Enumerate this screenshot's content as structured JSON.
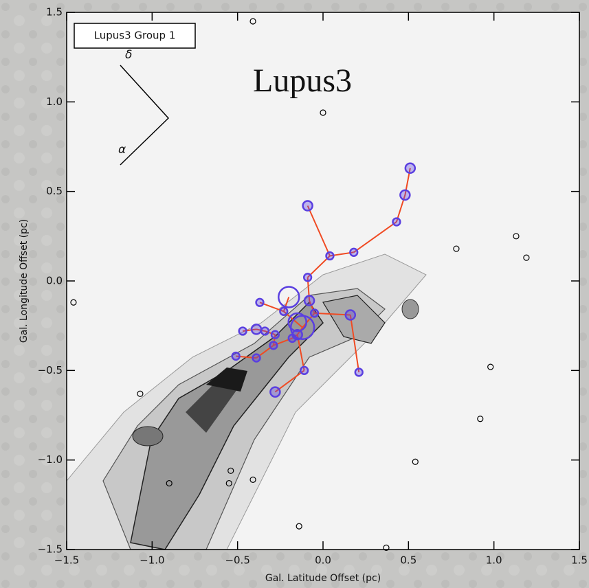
{
  "chart_data": {
    "type": "scatter",
    "title": "Lupus3",
    "legend_label": "Lupus3 Group 1",
    "compass": {
      "north": "δ",
      "east": "α"
    },
    "x_label": "Gal. Latitude Offset (pc)",
    "y_label": "Gal. Longitude Offset (pc)",
    "xlim": [
      -1.5,
      1.5
    ],
    "ylim": [
      -1.5,
      1.5
    ],
    "xticks": [
      {
        "value": -1.5,
        "label": "−1.5"
      },
      {
        "value": -1,
        "label": "−1.0"
      },
      {
        "value": -0.5,
        "label": "−0.5"
      },
      {
        "value": 0,
        "label": "0.0"
      },
      0.5,
      {
        "value": 1,
        "label": "1.0"
      },
      1.5
    ],
    "yticks": [
      {
        "value": -1.5,
        "label": "−1.5"
      },
      {
        "value": -1,
        "label": "−1.0"
      },
      {
        "value": -0.5,
        "label": "−0.5"
      },
      {
        "value": 0,
        "label": "0.0"
      },
      0.5,
      {
        "value": 1,
        "label": "1.0"
      },
      1.5
    ],
    "point_color": "#5a3fe0",
    "edge_color": "#f04a22",
    "points": {
      "x": [
        0.51,
        0.48,
        0.43,
        -0.09,
        0.18,
        0.04,
        -0.09,
        -0.2,
        -0.37,
        -0.23,
        -0.08,
        -0.05,
        0.16,
        -0.15,
        -0.12,
        0.21,
        -0.47,
        -0.39,
        -0.34,
        -0.28,
        -0.29,
        -0.18,
        -0.15,
        -0.11,
        -0.51,
        -0.39,
        -0.28
      ],
      "y": [
        0.63,
        0.48,
        0.33,
        0.42,
        0.16,
        0.14,
        0.02,
        -0.09,
        -0.12,
        -0.17,
        -0.11,
        -0.18,
        -0.19,
        -0.23,
        -0.26,
        -0.51,
        -0.28,
        -0.27,
        -0.28,
        -0.3,
        -0.36,
        -0.32,
        -0.3,
        -0.5,
        -0.42,
        -0.43,
        -0.62
      ],
      "sizes": [
        1,
        1,
        0.6,
        1,
        0.6,
        0.6,
        0.6,
        3,
        0.6,
        0.6,
        1,
        0.6,
        1,
        2.5,
        3.5,
        0.6,
        0.6,
        1,
        0.6,
        0.6,
        0.6,
        0.6,
        1,
        0.6,
        0.6,
        0.6,
        1
      ]
    },
    "mst_edges": [
      [
        0,
        1
      ],
      [
        1,
        2
      ],
      [
        2,
        4
      ],
      [
        4,
        5
      ],
      [
        5,
        3
      ],
      [
        5,
        6
      ],
      [
        6,
        10
      ],
      [
        10,
        11
      ],
      [
        11,
        12
      ],
      [
        12,
        15
      ],
      [
        11,
        14
      ],
      [
        14,
        9
      ],
      [
        9,
        8
      ],
      [
        9,
        7
      ],
      [
        14,
        22
      ],
      [
        22,
        21
      ],
      [
        22,
        23
      ],
      [
        23,
        26
      ],
      [
        21,
        20
      ],
      [
        20,
        19
      ],
      [
        19,
        18
      ],
      [
        18,
        17
      ],
      [
        17,
        16
      ],
      [
        20,
        25
      ],
      [
        25,
        24
      ]
    ],
    "stars": {
      "x": [
        -0.41,
        0.0,
        0.78,
        1.13,
        1.19,
        -1.46,
        0.98,
        0.92,
        0.54,
        -1.07,
        -0.54,
        -0.9,
        -0.41,
        -0.55,
        -0.14,
        0.37
      ],
      "y": [
        1.45,
        0.94,
        0.18,
        0.25,
        0.13,
        -0.12,
        -0.48,
        -0.77,
        -1.01,
        -0.63,
        -1.06,
        -1.13,
        -1.11,
        -1.13,
        -1.37,
        -1.49
      ]
    }
  }
}
